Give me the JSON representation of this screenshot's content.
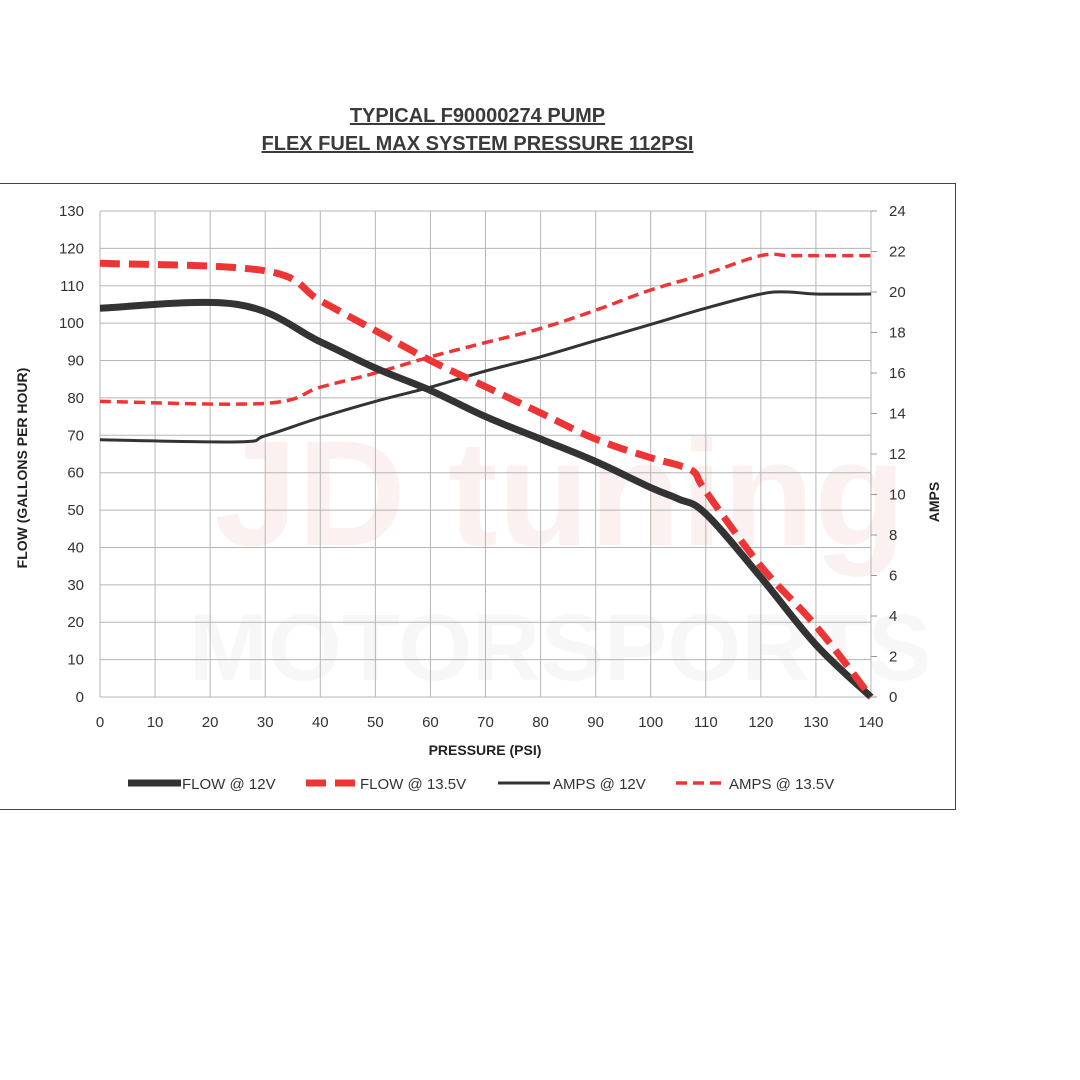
{
  "chart_data": {
    "type": "line",
    "title": "TYPICAL F90000274 PUMP",
    "subtitle": "FLEX FUEL MAX SYSTEM PRESSURE 112PSI",
    "xlabel": "PRESSURE (PSI)",
    "ylabel": "FLOW (GALLONS PER HOUR)",
    "y2label": "AMPS",
    "xlim": [
      0,
      140
    ],
    "ylim": [
      0,
      130
    ],
    "y2lim": [
      0,
      24
    ],
    "x_ticks": [
      0,
      10,
      20,
      30,
      40,
      50,
      60,
      70,
      80,
      90,
      100,
      110,
      120,
      130,
      140
    ],
    "y_ticks": [
      0,
      10,
      20,
      30,
      40,
      50,
      60,
      70,
      80,
      90,
      100,
      110,
      120,
      130
    ],
    "y2_ticks": [
      0,
      2,
      4,
      6,
      8,
      10,
      12,
      14,
      16,
      18,
      20,
      22,
      24
    ],
    "grid": true,
    "legend_position": "bottom",
    "watermark": {
      "line1": "JD tuning",
      "line2": "MOTORSPORTS"
    },
    "series": [
      {
        "name": "FLOW @ 12V",
        "axis": "left",
        "color": "#333333",
        "style": "solid-thick",
        "x": [
          0,
          25,
          40,
          50,
          60,
          70,
          80,
          90,
          100,
          105,
          110,
          120,
          130,
          140
        ],
        "y": [
          104,
          105,
          95,
          88,
          82,
          75,
          69,
          63,
          56,
          53,
          49,
          32,
          14,
          0
        ]
      },
      {
        "name": "FLOW @ 13.5V",
        "axis": "left",
        "color": "#ee3535",
        "style": "dashed-thick",
        "x": [
          0,
          30,
          40,
          50,
          60,
          70,
          80,
          90,
          100,
          105,
          108,
          110,
          120,
          130,
          140
        ],
        "y": [
          116,
          114,
          106,
          98,
          90,
          83,
          76,
          69,
          64,
          62,
          60,
          55,
          35,
          19,
          0
        ]
      },
      {
        "name": "AMPS @ 12V",
        "axis": "right",
        "color": "#333333",
        "style": "solid",
        "x": [
          0,
          25,
          30,
          40,
          50,
          60,
          70,
          80,
          90,
          100,
          110,
          120,
          125,
          130,
          140
        ],
        "y": [
          12.7,
          12.6,
          12.9,
          13.8,
          14.6,
          15.3,
          16.1,
          16.8,
          17.6,
          18.4,
          19.2,
          19.9,
          20.0,
          19.9,
          19.9
        ]
      },
      {
        "name": "AMPS @ 13.5V",
        "axis": "right",
        "color": "#ee3535",
        "style": "dashed",
        "x": [
          0,
          30,
          40,
          50,
          60,
          70,
          80,
          90,
          100,
          110,
          120,
          125,
          130,
          140
        ],
        "y": [
          14.6,
          14.5,
          15.3,
          16.0,
          16.8,
          17.5,
          18.2,
          19.1,
          20.1,
          20.9,
          21.8,
          21.8,
          21.8,
          21.8
        ]
      }
    ]
  }
}
